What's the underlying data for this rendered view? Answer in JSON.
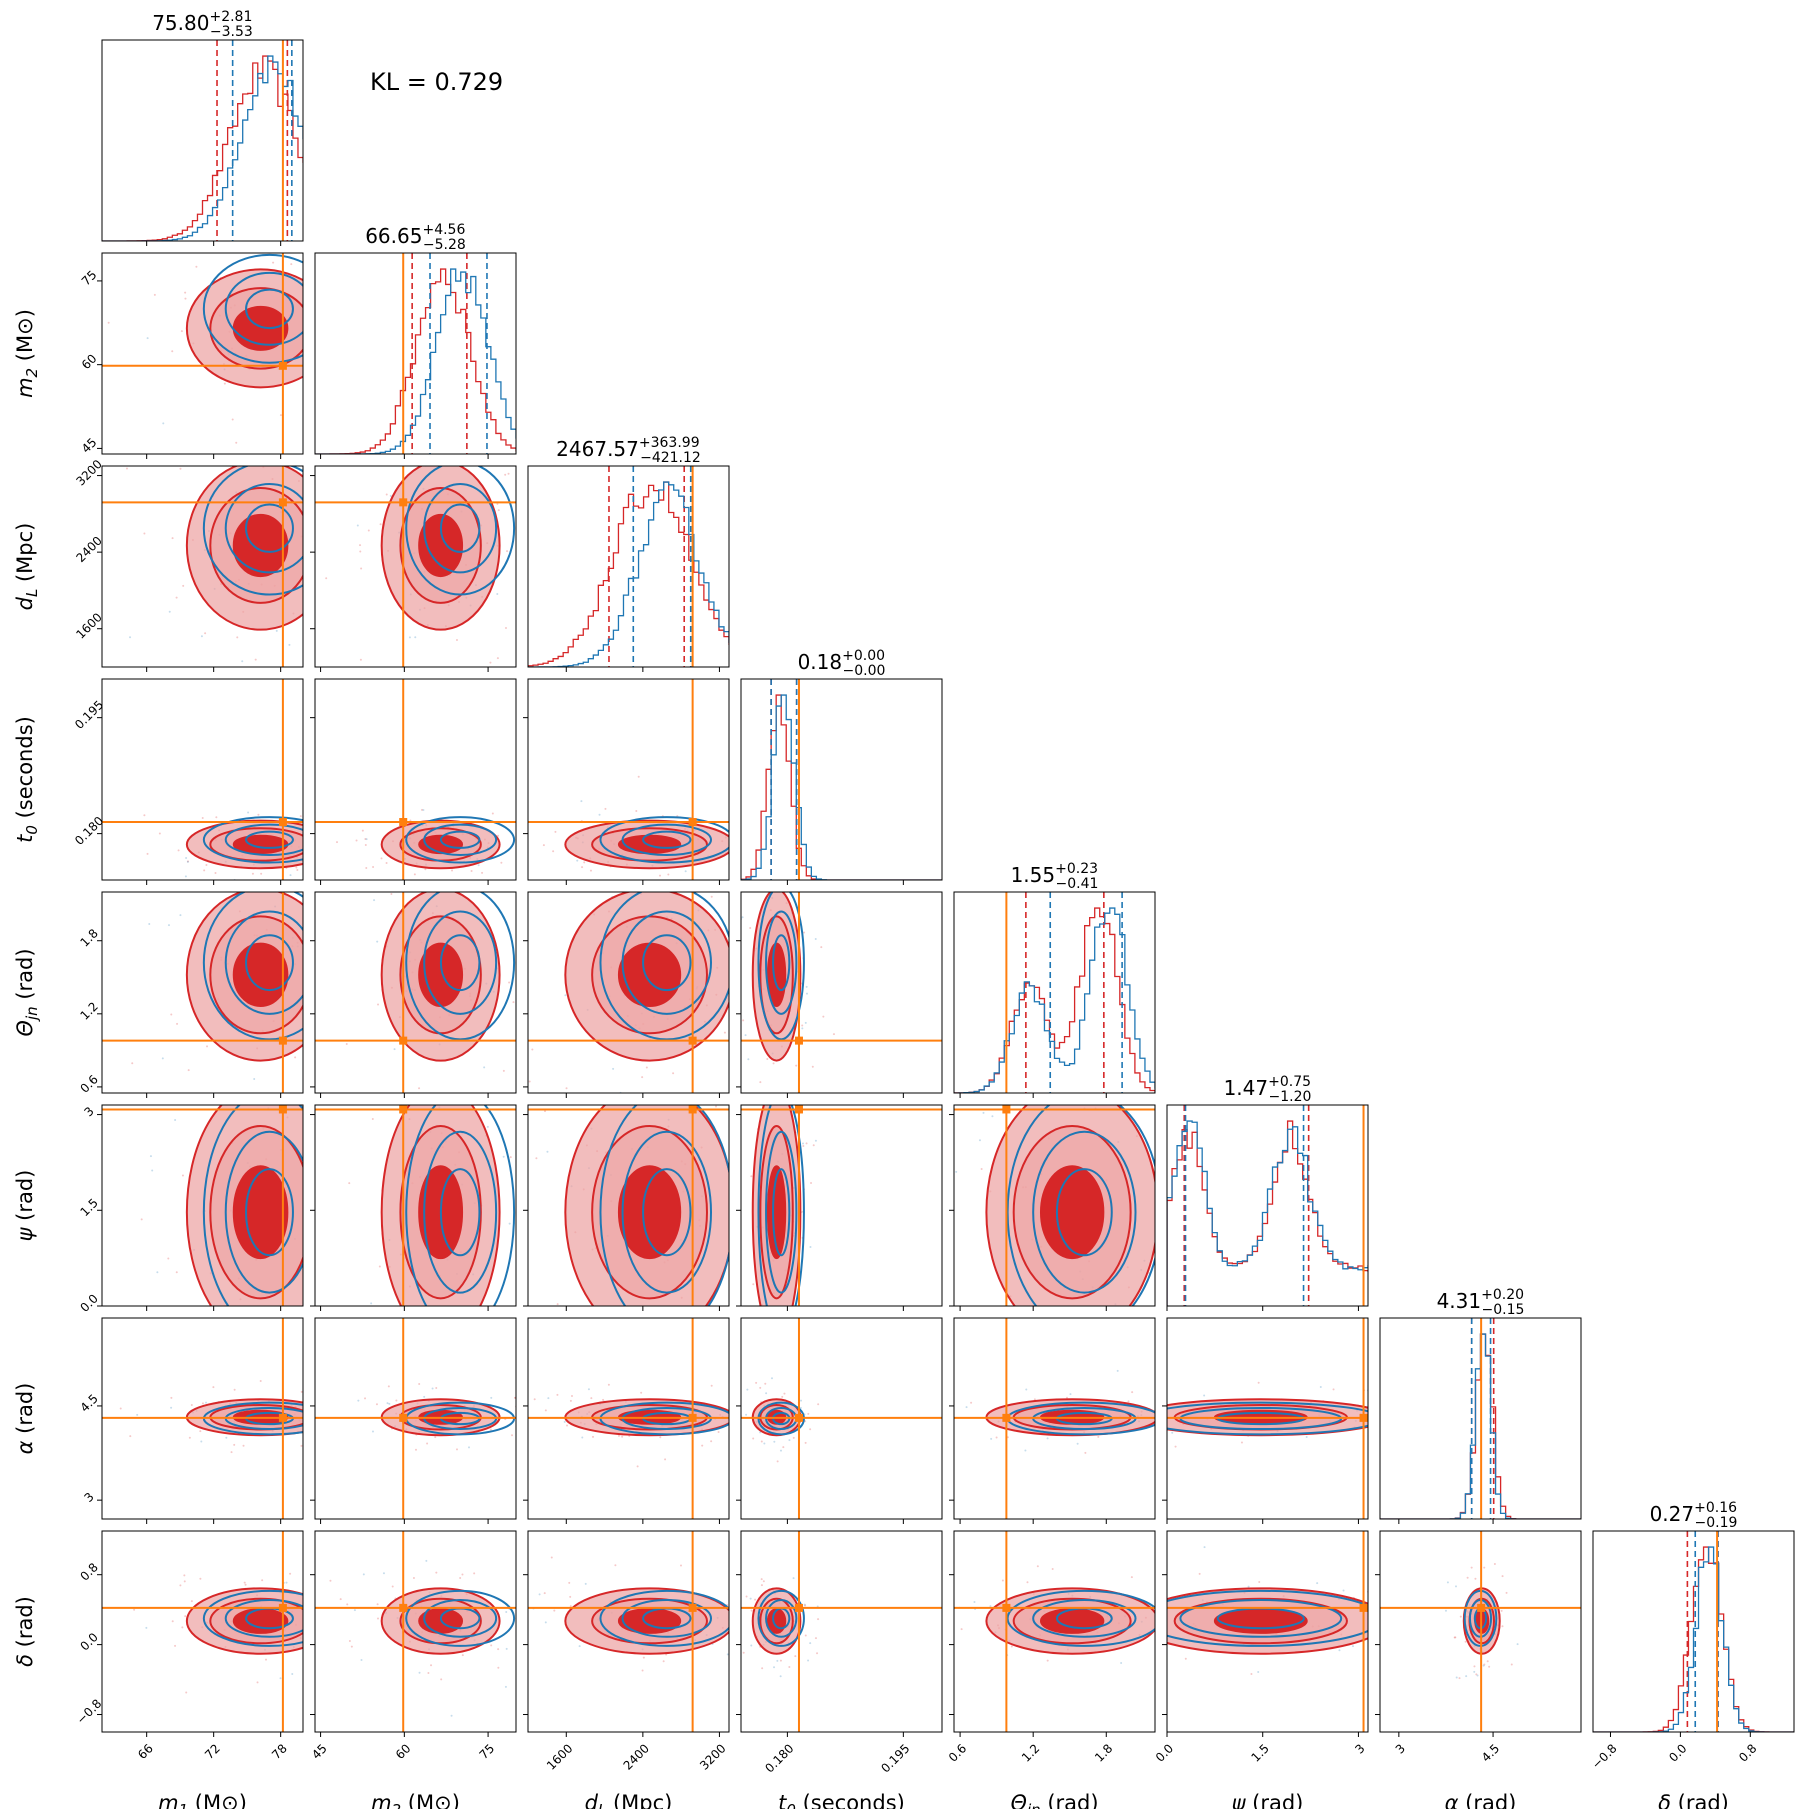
{
  "kl_text": "KL = 0.729",
  "colors": {
    "posterior_a": "#d62728",
    "posterior_b": "#1f77b4",
    "truth": "#ff7f0e",
    "fill_inner": "#d62728",
    "fill_outer": "#eda1a1"
  },
  "chart_data": {
    "type": "corner",
    "parameters": [
      {
        "key": "m1",
        "label_main": "m",
        "label_sub": "1",
        "label_unit": "(M⊙)",
        "range": [
          62,
          80
        ],
        "ticks": [
          66,
          72,
          78
        ],
        "truth": 78.2,
        "title_value": "75.80",
        "title_plus": "+2.81",
        "title_minus": "−3.53",
        "red": {
          "mean": 76.2,
          "sd": 3.0,
          "q": [
            72.3,
            78.6
          ]
        },
        "blue": {
          "mean": 77.0,
          "sd": 2.8,
          "q": [
            73.7,
            79.0
          ]
        }
      },
      {
        "key": "m2",
        "label_main": "m",
        "label_sub": "2",
        "label_unit": "(M⊙)",
        "range": [
          44,
          80
        ],
        "ticks": [
          45,
          60,
          75
        ],
        "truth": 59.8,
        "title_value": "66.65",
        "title_plus": "+4.56",
        "title_minus": "−5.28",
        "red": {
          "mean": 66.5,
          "sd": 4.8,
          "q": [
            61.4,
            71.2
          ]
        },
        "blue": {
          "mean": 70.0,
          "sd": 4.6,
          "q": [
            64.6,
            74.8
          ]
        }
      },
      {
        "key": "dL",
        "label_main": "d",
        "label_sub": "L",
        "label_unit": "(Mpc)",
        "range": [
          1200,
          3300
        ],
        "ticks": [
          1600,
          2400,
          3200
        ],
        "truth": 2920,
        "title_value": "2467.57",
        "title_plus": "+363.99",
        "title_minus": "−421.12",
        "red": {
          "mean": 2470,
          "sd": 400,
          "q": [
            2046,
            2832
          ]
        },
        "blue": {
          "mean": 2650,
          "sd": 330,
          "q": [
            2300,
            2900
          ]
        }
      },
      {
        "key": "t0",
        "label_main": "t",
        "label_sub": "0",
        "label_unit": "(seconds)",
        "range": [
          0.174,
          0.2
        ],
        "ticks": [
          0.18,
          0.195
        ],
        "truth": 0.1815,
        "title_value": "0.18",
        "title_plus": "+0.00",
        "title_minus": "−0.00",
        "red": {
          "mean": 0.1786,
          "sd": 0.0014,
          "q": [
            0.1779,
            0.1812
          ]
        },
        "blue": {
          "mean": 0.1792,
          "sd": 0.0014,
          "q": [
            0.1779,
            0.1812
          ]
        }
      },
      {
        "key": "theta",
        "label_main": "Θ",
        "label_sub": "jn",
        "label_unit": "(rad)",
        "range": [
          0.55,
          2.2
        ],
        "ticks": [
          0.6,
          1.2,
          1.8
        ],
        "truth": 0.98,
        "title_value": "1.55",
        "title_plus": "+0.23",
        "title_minus": "−0.41",
        "red": {
          "mean": 1.52,
          "sd": 0.32,
          "q": [
            1.14,
            1.78
          ]
        },
        "blue": {
          "mean": 1.62,
          "sd": 0.3,
          "q": [
            1.34,
            1.93
          ]
        }
      },
      {
        "key": "psi",
        "label_main": "ψ",
        "label_sub": "",
        "label_unit": "(rad)",
        "range": [
          0.0,
          3.15
        ],
        "ticks": [
          0.0,
          1.5,
          3.0
        ],
        "truth": 3.08,
        "title_value": "1.47",
        "title_plus": "+0.75",
        "title_minus": "−1.20",
        "red": {
          "mean": 1.47,
          "sd": 0.9,
          "q": [
            0.27,
            2.22
          ]
        },
        "blue": {
          "mean": 1.47,
          "sd": 0.9,
          "q": [
            0.29,
            2.14
          ]
        }
      },
      {
        "key": "alpha",
        "label_main": "α",
        "label_sub": "",
        "label_unit": "(rad)",
        "range": [
          2.7,
          5.9
        ],
        "ticks": [
          3.0,
          4.5
        ],
        "truth": 4.31,
        "title_value": "4.31",
        "title_plus": "+0.20",
        "title_minus": "−0.15",
        "red": {
          "mean": 4.32,
          "sd": 0.13,
          "q": [
            4.16,
            4.51
          ]
        },
        "blue": {
          "mean": 4.3,
          "sd": 0.12,
          "q": [
            4.16,
            4.46
          ]
        }
      },
      {
        "key": "delta",
        "label_main": "δ",
        "label_sub": "",
        "label_unit": "(rad)",
        "range": [
          -1.0,
          1.3
        ],
        "ticks": [
          -0.8,
          0.0,
          0.8
        ],
        "truth": 0.42,
        "title_value": "0.27",
        "title_plus": "+0.16",
        "title_minus": "−0.19",
        "red": {
          "mean": 0.27,
          "sd": 0.17,
          "q": [
            0.08,
            0.43
          ]
        },
        "blue": {
          "mean": 0.3,
          "sd": 0.15,
          "q": [
            0.17,
            0.43
          ]
        }
      }
    ]
  }
}
